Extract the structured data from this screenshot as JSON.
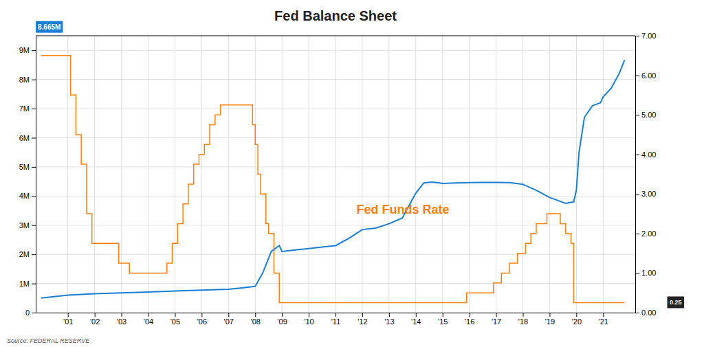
{
  "chart_data": {
    "type": "line",
    "title": "Fed Balance Sheet",
    "grid": true,
    "xlim": [
      1999.8,
      2022.2
    ],
    "xticks": [
      {
        "value": 2001,
        "label": "'01"
      },
      {
        "value": 2002,
        "label": "'02"
      },
      {
        "value": 2003,
        "label": "'03"
      },
      {
        "value": 2004,
        "label": "'04"
      },
      {
        "value": 2005,
        "label": "'05"
      },
      {
        "value": 2006,
        "label": "'06"
      },
      {
        "value": 2007,
        "label": "'07"
      },
      {
        "value": 2008,
        "label": "'08"
      },
      {
        "value": 2009,
        "label": "'09"
      },
      {
        "value": 2010,
        "label": "'10"
      },
      {
        "value": 2011,
        "label": "'11"
      },
      {
        "value": 2012,
        "label": "'12"
      },
      {
        "value": 2013,
        "label": "'13"
      },
      {
        "value": 2014,
        "label": "'14"
      },
      {
        "value": 2015,
        "label": "'15"
      },
      {
        "value": 2016,
        "label": "'16"
      },
      {
        "value": 2017,
        "label": "'17"
      },
      {
        "value": 2018,
        "label": "'18"
      },
      {
        "value": 2019,
        "label": "'19"
      },
      {
        "value": 2020,
        "label": "'20"
      },
      {
        "value": 2021,
        "label": "'21"
      }
    ],
    "ylim": [
      0,
      9.5
    ],
    "yticks": [
      0,
      {
        "value": 1,
        "label": "1M"
      },
      {
        "value": 2,
        "label": "2M"
      },
      {
        "value": 3,
        "label": "3M"
      },
      {
        "value": 4,
        "label": "4M"
      },
      {
        "value": 5,
        "label": "5M"
      },
      {
        "value": 6,
        "label": "6M"
      },
      {
        "value": 7,
        "label": "7M"
      },
      {
        "value": 8,
        "label": "8M"
      },
      {
        "value": 9,
        "label": "9M"
      }
    ],
    "y2lim": [
      0,
      7.0
    ],
    "y2ticks": [
      {
        "value": 0.0,
        "label": "0.00"
      },
      {
        "value": 1.0,
        "label": "1.00"
      },
      {
        "value": 2.0,
        "label": "2.00"
      },
      {
        "value": 3.0,
        "label": "3.00"
      },
      {
        "value": 4.0,
        "label": "4.00"
      },
      {
        "value": 5.0,
        "label": "5.00"
      },
      {
        "value": 6.0,
        "label": "6.00"
      },
      {
        "value": 7.0,
        "label": "7.00"
      }
    ],
    "series": [
      {
        "type": "line",
        "color": "#1a7fd4",
        "x": [
          2000.0,
          2001.0,
          2002.0,
          2003.0,
          2004.0,
          2005.0,
          2006.0,
          2007.0,
          2007.5,
          2008.0,
          2008.3,
          2008.6,
          2008.9,
          2009.0,
          2009.5,
          2010.0,
          2010.5,
          2011.0,
          2011.5,
          2012.0,
          2012.5,
          2013.0,
          2013.5,
          2014.0,
          2014.3,
          2014.6,
          2014.9,
          2015.0,
          2015.5,
          2016.0,
          2016.5,
          2017.0,
          2017.5,
          2018.0,
          2018.5,
          2019.0,
          2019.3,
          2019.6,
          2019.9,
          2020.0,
          2020.1,
          2020.3,
          2020.6,
          2020.9,
          2021.0,
          2021.3,
          2021.6,
          2021.8
        ],
        "values": [
          0.5,
          0.6,
          0.65,
          0.68,
          0.71,
          0.74,
          0.77,
          0.8,
          0.85,
          0.9,
          1.4,
          2.1,
          2.3,
          2.1,
          2.15,
          2.2,
          2.25,
          2.3,
          2.55,
          2.85,
          2.9,
          3.05,
          3.25,
          4.1,
          4.45,
          4.48,
          4.45,
          4.43,
          4.45,
          4.46,
          4.47,
          4.47,
          4.46,
          4.4,
          4.2,
          3.95,
          3.85,
          3.75,
          3.8,
          4.2,
          5.5,
          6.7,
          7.1,
          7.2,
          7.4,
          7.7,
          8.2,
          8.665
        ]
      },
      {
        "type": "step",
        "axis": "y2",
        "x": [
          2000.0,
          2001.0,
          2001.1,
          2001.3,
          2001.5,
          2001.7,
          2001.9,
          2002.5,
          2002.9,
          2003.3,
          2004.5,
          2004.7,
          2004.9,
          2005.1,
          2005.3,
          2005.5,
          2005.7,
          2005.9,
          2006.1,
          2006.3,
          2006.5,
          2006.7,
          2007.8,
          2007.9,
          2008.0,
          2008.1,
          2008.2,
          2008.4,
          2008.5,
          2008.7,
          2008.9,
          2015.8,
          2015.9,
          2016.8,
          2016.9,
          2017.2,
          2017.5,
          2017.8,
          2018.1,
          2018.3,
          2018.5,
          2018.7,
          2018.9,
          2019.2,
          2019.4,
          2019.6,
          2019.8,
          2019.9,
          2021.8
        ],
        "values": [
          6.5,
          6.5,
          5.5,
          4.5,
          3.75,
          2.5,
          1.75,
          1.75,
          1.25,
          1.0,
          1.0,
          1.25,
          1.75,
          2.25,
          2.75,
          3.25,
          3.75,
          4.0,
          4.25,
          4.75,
          5.0,
          5.25,
          5.25,
          4.75,
          4.25,
          3.5,
          3.0,
          2.25,
          2.0,
          1.0,
          0.25,
          0.25,
          0.5,
          0.5,
          0.75,
          1.0,
          1.25,
          1.5,
          1.75,
          2.0,
          2.25,
          2.25,
          2.5,
          2.5,
          2.25,
          2.0,
          1.75,
          0.25,
          0.25
        ]
      }
    ],
    "annotations": [
      {
        "text": "Fed Funds Rate"
      },
      {
        "text": "8.665M"
      },
      {
        "text": "0.25"
      },
      {
        "text": "Source: FEDERAL RESERVE"
      }
    ]
  }
}
